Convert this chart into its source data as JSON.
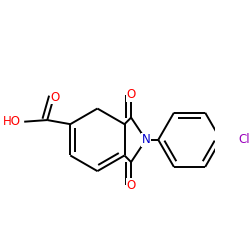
{
  "bg": "#ffffff",
  "bc": "#000000",
  "lw": 1.4,
  "fs": 8.5,
  "atom_colors": {
    "O": "#ff0000",
    "N": "#0000cc",
    "Cl": "#9900bb"
  },
  "figsize": [
    2.5,
    2.5
  ],
  "dpi": 100
}
